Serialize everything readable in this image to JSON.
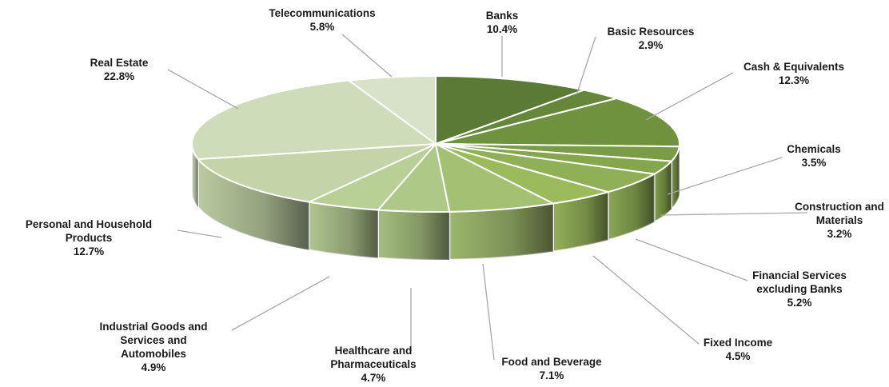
{
  "chart_data": {
    "type": "pie",
    "title": "",
    "slices": [
      {
        "label": [
          "Banks"
        ],
        "value": 10.4,
        "display": "10.4%",
        "color": "#5b7a35"
      },
      {
        "label": [
          "Basic Resources"
        ],
        "value": 2.9,
        "display": "2.9%",
        "color": "#65873a"
      },
      {
        "label": [
          "Cash &  Equivalents"
        ],
        "value": 12.3,
        "display": "12.3%",
        "color": "#6f923f"
      },
      {
        "label": [
          "Chemicals"
        ],
        "value": 3.5,
        "display": "3.5%",
        "color": "#7a9c47"
      },
      {
        "label": [
          "Construction and",
          "Materials"
        ],
        "value": 3.2,
        "display": "3.2%",
        "color": "#86a64e"
      },
      {
        "label": [
          "Financial Services",
          "excluding Banks"
        ],
        "value": 5.2,
        "display": "5.2%",
        "color": "#90b057"
      },
      {
        "label": [
          "Fixed Income"
        ],
        "value": 4.5,
        "display": "4.5%",
        "color": "#9aba5c"
      },
      {
        "label": [
          "Food and Beverage"
        ],
        "value": 7.1,
        "display": "7.1%",
        "color": "#a4c072"
      },
      {
        "label": [
          "Healthcare and",
          "Pharmaceuticals"
        ],
        "value": 4.7,
        "display": "4.7%",
        "color": "#aec887"
      },
      {
        "label": [
          "Industrial Goods and",
          "Services and",
          "Automobiles"
        ],
        "value": 4.9,
        "display": "4.9%",
        "color": "#b8cf96"
      },
      {
        "label": [
          "Personal and Household",
          "Products"
        ],
        "value": 12.7,
        "display": "12.7%",
        "color": "#c3d5a8"
      },
      {
        "label": [
          "Real Estate"
        ],
        "value": 22.8,
        "display": "22.8%",
        "color": "#cedcb9"
      },
      {
        "label": [
          "Telecommunications"
        ],
        "value": 5.8,
        "display": "5.8%",
        "color": "#d8e2c8"
      }
    ]
  }
}
